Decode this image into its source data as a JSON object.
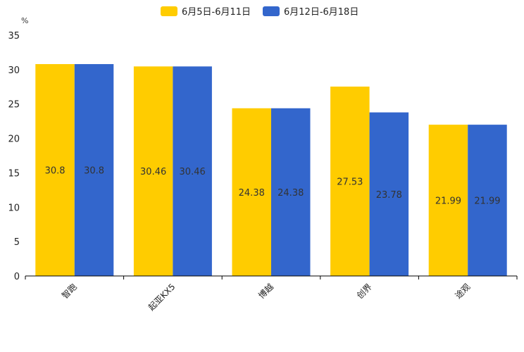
{
  "chart_data": {
    "type": "bar",
    "title": "",
    "xlabel": "",
    "ylabel": "%",
    "ylim": [
      0,
      35
    ],
    "yticks": [
      0,
      5,
      10,
      15,
      20,
      25,
      30,
      35
    ],
    "categories": [
      "智跑",
      "起亚KX5",
      "博越",
      "创界",
      "途观"
    ],
    "series": [
      {
        "name": "6月5日-6月11日",
        "color": "#FFCC00",
        "values": [
          30.8,
          30.46,
          24.38,
          27.53,
          21.99
        ]
      },
      {
        "name": "6月12日-6月18日",
        "color": "#3366CC",
        "values": [
          30.8,
          30.46,
          24.38,
          23.78,
          21.99
        ]
      }
    ],
    "legend_position": "top-center",
    "grid": false
  }
}
